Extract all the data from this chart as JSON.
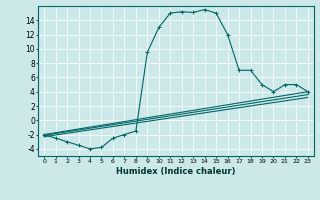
{
  "title": "",
  "xlabel": "Humidex (Indice chaleur)",
  "ylabel": "",
  "background_color": "#cce8e8",
  "line_color": "#006666",
  "xlim": [
    -0.5,
    23.5
  ],
  "ylim": [
    -5,
    16
  ],
  "xticks": [
    0,
    1,
    2,
    3,
    4,
    5,
    6,
    7,
    8,
    9,
    10,
    11,
    12,
    13,
    14,
    15,
    16,
    17,
    18,
    19,
    20,
    21,
    22,
    23
  ],
  "yticks": [
    -4,
    -2,
    0,
    2,
    4,
    6,
    8,
    10,
    12,
    14
  ],
  "series": [
    [
      0,
      -2
    ],
    [
      1,
      -2.5
    ],
    [
      2,
      -3
    ],
    [
      3,
      -3.5
    ],
    [
      4,
      -4
    ],
    [
      5,
      -3.8
    ],
    [
      6,
      -2.5
    ],
    [
      7,
      -2
    ],
    [
      8,
      -1.5
    ],
    [
      9,
      9.5
    ],
    [
      10,
      13
    ],
    [
      11,
      15
    ],
    [
      12,
      15.2
    ],
    [
      13,
      15.1
    ],
    [
      14,
      15.5
    ],
    [
      15,
      15
    ],
    [
      16,
      12
    ],
    [
      17,
      7
    ],
    [
      18,
      7
    ],
    [
      19,
      5
    ],
    [
      20,
      4
    ],
    [
      21,
      5
    ],
    [
      22,
      5
    ],
    [
      23,
      4
    ]
  ],
  "line2": [
    [
      0,
      -2
    ],
    [
      23,
      4
    ]
  ],
  "line3": [
    [
      0,
      -2.1
    ],
    [
      23,
      3.6
    ]
  ],
  "line4": [
    [
      0,
      -2.3
    ],
    [
      23,
      3.2
    ]
  ]
}
